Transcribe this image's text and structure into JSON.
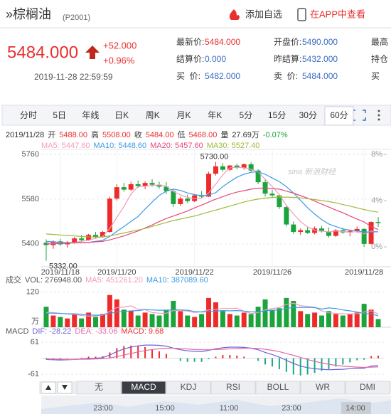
{
  "header": {
    "title": "»棕榈油",
    "code": "(P2001)",
    "add_watchlist": "添加自选",
    "open_app": "在APP中查看"
  },
  "quote": {
    "price": "5484.000",
    "change": "+52.000",
    "change_pct": "+0.96%",
    "time": "2019-11-28 22:59:59",
    "fields": [
      [
        {
          "label": "最新价:",
          "value": "5484.000",
          "color": "#e8302e"
        },
        {
          "label": "开盘价:",
          "value": "5490.000",
          "color": "#3a6bc4"
        },
        {
          "label": "最高"
        }
      ],
      [
        {
          "label": "结算价:",
          "value": "0.000",
          "color": "#3a6bc4"
        },
        {
          "label": "昨结算:",
          "value": "5432.000",
          "color": "#3a6bc4"
        },
        {
          "label": "持仓"
        }
      ],
      [
        {
          "label": "买  价:",
          "value": "5482.000",
          "color": "#3a6bc4"
        },
        {
          "label": "卖  价:",
          "value": "5484.000",
          "color": "#3a6bc4"
        },
        {
          "label": "买"
        }
      ]
    ]
  },
  "tabs": [
    "分时",
    "5日",
    "年线",
    "日K",
    "周K",
    "月K",
    "年K",
    "5分",
    "15分",
    "30分",
    "60分"
  ],
  "selected_tab": 10,
  "chart_data": [
    {
      "type": "candlestick",
      "info": [
        {
          "text": "2019/11/28",
          "color": "#333"
        },
        {
          "text": "开",
          "color": "#333"
        },
        {
          "text": "5488.00",
          "color": "#e8302e"
        },
        {
          "text": "高",
          "color": "#333"
        },
        {
          "text": "5508.00",
          "color": "#e8302e"
        },
        {
          "text": "收",
          "color": "#333"
        },
        {
          "text": "5484.00",
          "color": "#e8302e"
        },
        {
          "text": "低",
          "color": "#333"
        },
        {
          "text": "5468.00",
          "color": "#e8302e"
        },
        {
          "text": "量",
          "color": "#333"
        },
        {
          "text": "27.69万",
          "color": "#333"
        },
        {
          "text": "-0.07%",
          "color": "#1ba33c"
        }
      ],
      "categories": [
        null,
        null,
        "2019/11/18",
        null,
        null,
        null,
        null,
        null,
        null,
        null,
        "2019/11/20",
        null,
        null,
        null,
        null,
        null,
        null,
        null,
        null,
        null,
        null,
        "2019/11/22",
        null,
        null,
        null,
        null,
        null,
        null,
        null,
        null,
        null,
        null,
        "2019/11/26",
        null,
        null,
        null,
        null,
        null,
        null,
        null,
        null,
        null,
        null,
        null,
        null,
        "2019/11/28",
        null,
        null
      ],
      "open": [
        5405,
        5395,
        5410,
        5398,
        5405,
        5422,
        5415,
        5436,
        5428,
        5448,
        5582,
        5628,
        5618,
        5640,
        5632,
        5645,
        5638,
        5630,
        5612,
        5560,
        5582,
        5572,
        5595,
        5590,
        5682,
        5712,
        5698,
        5715,
        5706,
        5720,
        5695,
        5648,
        5602,
        5595,
        5548,
        5478,
        5448,
        5455,
        5444,
        5462,
        5450,
        5432,
        5455,
        5446,
        5452,
        5460,
        5400,
        5488
      ],
      "high": [
        5418,
        5415,
        5420,
        5412,
        5428,
        5436,
        5440,
        5448,
        5452,
        5590,
        5640,
        5645,
        5650,
        5655,
        5652,
        5660,
        5650,
        5648,
        5620,
        5590,
        5598,
        5600,
        5612,
        5690,
        5730,
        5725,
        5718,
        5722,
        5724,
        5728,
        5700,
        5660,
        5618,
        5600,
        5556,
        5490,
        5462,
        5468,
        5470,
        5472,
        5466,
        5460,
        5465,
        5458,
        5470,
        5462,
        5490,
        5508
      ],
      "low": [
        5332,
        5380,
        5392,
        5385,
        5400,
        5410,
        5412,
        5420,
        5425,
        5445,
        5575,
        5610,
        5612,
        5625,
        5620,
        5630,
        5622,
        5600,
        5548,
        5552,
        5565,
        5568,
        5585,
        5588,
        5675,
        5690,
        5692,
        5700,
        5698,
        5690,
        5640,
        5590,
        5585,
        5540,
        5470,
        5440,
        5436,
        5440,
        5438,
        5446,
        5425,
        5428,
        5440,
        5430,
        5445,
        5388,
        5398,
        5468
      ],
      "close": [
        5395,
        5410,
        5398,
        5405,
        5422,
        5415,
        5436,
        5428,
        5448,
        5582,
        5628,
        5618,
        5640,
        5632,
        5645,
        5638,
        5630,
        5612,
        5560,
        5582,
        5572,
        5595,
        5590,
        5682,
        5712,
        5698,
        5715,
        5706,
        5720,
        5695,
        5648,
        5602,
        5595,
        5548,
        5478,
        5448,
        5455,
        5444,
        5462,
        5450,
        5432,
        5455,
        5446,
        5452,
        5460,
        5400,
        5488,
        5484
      ],
      "up_color": "#ee2b2b",
      "down_color": "#1ba33c",
      "series": [
        {
          "name": "MA5: 5447.60",
          "color": "#f29bbd",
          "values": [
            5400,
            5402,
            5404,
            5405,
            5406,
            5410,
            5415,
            5422,
            5430,
            5462,
            5506,
            5550,
            5600,
            5630,
            5632,
            5635,
            5637,
            5632,
            5611,
            5597,
            5587,
            5582,
            5584,
            5605,
            5640,
            5678,
            5706,
            5708,
            5706,
            5700,
            5690,
            5660,
            5630,
            5598,
            5555,
            5520,
            5490,
            5468,
            5455,
            5452,
            5448,
            5452,
            5450,
            5447,
            5449,
            5440,
            5452,
            5447.6
          ]
        },
        {
          "name": "MA10: 5448.60",
          "color": "#3b9be8",
          "values": [
            5410,
            5408,
            5406,
            5405,
            5404,
            5404,
            5406,
            5410,
            5414,
            5430,
            5450,
            5470,
            5490,
            5510,
            5540,
            5568,
            5595,
            5612,
            5620,
            5615,
            5605,
            5598,
            5594,
            5596,
            5606,
            5630,
            5650,
            5668,
            5680,
            5688,
            5690,
            5680,
            5665,
            5650,
            5630,
            5605,
            5575,
            5545,
            5520,
            5498,
            5480,
            5470,
            5460,
            5455,
            5452,
            5448,
            5448,
            5448.6
          ]
        },
        {
          "name": "MA20: 5457.60",
          "color": "#e8467c",
          "values": [
            5400,
            5400,
            5402,
            5403,
            5404,
            5405,
            5406,
            5408,
            5410,
            5416,
            5424,
            5432,
            5442,
            5452,
            5464,
            5476,
            5490,
            5502,
            5512,
            5522,
            5532,
            5545,
            5556,
            5568,
            5580,
            5590,
            5600,
            5608,
            5614,
            5620,
            5624,
            5624,
            5622,
            5620,
            5612,
            5604,
            5594,
            5584,
            5572,
            5560,
            5548,
            5536,
            5525,
            5512,
            5500,
            5488,
            5470,
            5457.6
          ]
        },
        {
          "name": "MA30: 5527.40",
          "color": "#9bbb3a",
          "values": [
            5440,
            5438,
            5436,
            5434,
            5432,
            5430,
            5428,
            5428,
            5428,
            5432,
            5438,
            5444,
            5450,
            5456,
            5462,
            5470,
            5478,
            5486,
            5494,
            5500,
            5506,
            5512,
            5520,
            5528,
            5536,
            5544,
            5552,
            5560,
            5568,
            5575,
            5580,
            5584,
            5587,
            5588,
            5588,
            5587,
            5585,
            5582,
            5578,
            5574,
            5570,
            5565,
            5558,
            5552,
            5545,
            5538,
            5532,
            5527.4
          ]
        }
      ],
      "ylim": [
        5308,
        5780
      ],
      "yticks": [
        5760,
        5580,
        5400
      ],
      "y2lim": [
        -1.72,
        8.43
      ],
      "y2ticks": [
        {
          "value": 8,
          "label": "8%"
        },
        {
          "value": 4,
          "label": "4%"
        },
        {
          "value": 0,
          "label": "0%"
        }
      ],
      "annotations": [
        {
          "label": "5730.00",
          "index": 24
        },
        {
          "label": "5332.00",
          "index": 0
        }
      ],
      "watermark": "sina 新浪财经"
    },
    {
      "type": "bar",
      "title": "成交",
      "vol_label": "VOL: 276948.00",
      "unit": "万",
      "values": [
        70,
        40,
        35,
        30,
        45,
        30,
        50,
        35,
        45,
        110,
        95,
        60,
        55,
        40,
        50,
        45,
        40,
        60,
        90,
        55,
        40,
        35,
        45,
        100,
        85,
        55,
        45,
        40,
        50,
        45,
        70,
        95,
        60,
        65,
        100,
        90,
        55,
        45,
        50,
        40,
        55,
        45,
        40,
        45,
        50,
        80,
        60,
        27.69
      ],
      "series": [
        {
          "name": "MA5: 451261.20",
          "color": "#f29bbd",
          "values": [
            50,
            50,
            48,
            45,
            44,
            40,
            38,
            38,
            41,
            54,
            67,
            69,
            73,
            61,
            60,
            50,
            48,
            48,
            57,
            58,
            55,
            50,
            53,
            59,
            61,
            64,
            64,
            65,
            55,
            47,
            50,
            60,
            64,
            67,
            78,
            82,
            74,
            71,
            68,
            56,
            49,
            47,
            46,
            45,
            46,
            52,
            56,
            45.13
          ]
        },
        {
          "name": "MA10: 387089.60",
          "color": "#3b9be8",
          "values": [
            48,
            48,
            47,
            46,
            46,
            44,
            42,
            41,
            42,
            47,
            52,
            54,
            56,
            57,
            60,
            59,
            58,
            58,
            59,
            59,
            58,
            54,
            52,
            53,
            55,
            57,
            56,
            57,
            55,
            53,
            52,
            57,
            58,
            59,
            64,
            68,
            67,
            68,
            67,
            62,
            66,
            64,
            59,
            56,
            52,
            47,
            46,
            38.71
          ]
        }
      ],
      "ylim": [
        0,
        141
      ],
      "yticks": [
        120
      ]
    },
    {
      "type": "macd",
      "title": "MACD",
      "bar_label": "MACD: 9.68",
      "bar_up_color": "#ee2b2b",
      "bar_down_color": "#1aa88a",
      "bars": [
        -4,
        -4,
        -6,
        -2,
        0,
        2,
        6,
        6,
        8,
        22,
        38,
        46,
        48,
        46,
        42,
        34,
        26,
        16,
        0,
        -10,
        -14,
        -14,
        -14,
        -4,
        6,
        12,
        12,
        10,
        6,
        0,
        -10,
        -24,
        -32,
        -42,
        -52,
        -62,
        -66,
        -62,
        -56,
        -48,
        -42,
        -32,
        -24,
        -16,
        -8,
        -6,
        8,
        9.68
      ],
      "series": [
        {
          "name": "DIF: -28.22",
          "color": "#6b63d8",
          "values": [
            -5,
            -6,
            -7,
            -6,
            -5,
            -3,
            -1,
            0,
            2,
            12,
            25,
            35,
            42,
            47,
            50,
            50,
            49,
            46,
            38,
            32,
            28,
            26,
            25,
            30,
            36,
            40,
            42,
            42,
            41,
            38,
            32,
            22,
            14,
            4,
            -8,
            -20,
            -30,
            -36,
            -40,
            -42,
            -44,
            -43,
            -42,
            -40,
            -38,
            -38,
            -30,
            -28.22
          ]
        },
        {
          "name": "DEA: -33.06",
          "color": "#e667a8",
          "values": [
            -3,
            -4,
            -4,
            -5,
            -5,
            -4,
            -4,
            -3,
            -2,
            1,
            6,
            12,
            18,
            24,
            29,
            33,
            36,
            38,
            38,
            37,
            35,
            33,
            32,
            32,
            33,
            34,
            36,
            37,
            38,
            38,
            37,
            34,
            30,
            25,
            18,
            11,
            3,
            -5,
            -12,
            -18,
            -23,
            -27,
            -30,
            -32,
            -34,
            -35,
            -34,
            -33.06
          ]
        }
      ],
      "ylim": [
        -77,
        80
      ],
      "yticks": [
        61,
        -61
      ]
    }
  ],
  "indicator_tabs": [
    "无",
    "MACD",
    "KDJ",
    "RSI",
    "BOLL",
    "WR",
    "DMI"
  ],
  "selected_indicator": 1,
  "navigator_times": [
    "23:00",
    "15:00",
    "11:00",
    "23:00",
    "14:00"
  ]
}
